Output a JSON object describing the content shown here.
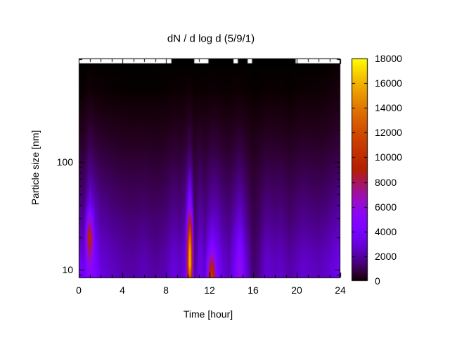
{
  "chart_data": {
    "type": "heatmap",
    "title": "dN / d log d (5/9/1)",
    "xlabel": "Time [hour]",
    "ylabel": "Particle size [nm]",
    "x_range_hour": [
      0,
      24
    ],
    "y_range_nm": [
      8.3,
      920
    ],
    "y_scale": "log",
    "x_ticks_major": [
      0,
      4,
      8,
      12,
      16,
      20,
      24
    ],
    "x_tick_labels": [
      "0",
      "4",
      "8",
      "12",
      "16",
      "20",
      "24"
    ],
    "x_minor_step_hour": 1,
    "y_ticks_labeled": [
      10,
      100
    ],
    "y_tick_labels": [
      "10",
      "100"
    ],
    "y_ticks_minor": [
      9,
      20,
      30,
      40,
      50,
      60,
      70,
      80,
      90,
      200,
      300,
      400,
      500,
      600,
      700,
      800,
      900
    ],
    "colorbar": {
      "min": 0,
      "max": 18000,
      "tick_step": 2000,
      "tick_labels": [
        "0",
        "2000",
        "4000",
        "6000",
        "8000",
        "10000",
        "12000",
        "14000",
        "16000",
        "18000"
      ],
      "palette_name": "gnuplot default pm3d (rgbformulae 7,5,15)",
      "palette_stops": [
        {
          "value": 0,
          "hex": "#000000"
        },
        {
          "value": 2000,
          "hex": "#5500a4"
        },
        {
          "value": 4000,
          "hex": "#7803fb"
        },
        {
          "value": 6000,
          "hex": "#930ddd"
        },
        {
          "value": 9000,
          "hex": "#b42000"
        },
        {
          "value": 12000,
          "hex": "#d04b00"
        },
        {
          "value": 14000,
          "hex": "#dd6c00"
        },
        {
          "value": 16000,
          "hex": "#efab00"
        },
        {
          "value": 18000,
          "hex": "#ffff00"
        }
      ]
    },
    "top_black_segments_hour": [
      [
        8.5,
        10.6
      ],
      [
        11.9,
        14.2
      ],
      [
        14.6,
        15.5
      ],
      [
        15.9,
        19.9
      ]
    ],
    "size_bins_nm": [
      8,
      11,
      15,
      20,
      28,
      40,
      60,
      90,
      140,
      250,
      450,
      800
    ],
    "time_bins_hour": [
      0,
      0.5,
      1.0,
      1.5,
      2.0,
      2.5,
      3.0,
      4.0,
      5.0,
      6.0,
      7.0,
      8.0,
      8.7,
      9.3,
      9.8,
      10.2,
      10.6,
      11.1,
      11.6,
      12.2,
      12.7,
      13.2,
      13.8,
      14.3,
      14.8,
      15.3,
      16.0,
      16.5,
      17.2,
      18.0,
      18.6,
      19.3,
      20.0,
      20.6,
      21.3,
      22.0,
      22.8,
      23.5,
      24.0
    ],
    "values_order": "values[time_index][size_index], size_bins ascending",
    "values": [
      [
        4200,
        3600,
        2900,
        2400,
        2000,
        1600,
        1200,
        900,
        550,
        250,
        30,
        0
      ],
      [
        3800,
        3400,
        2800,
        2300,
        1900,
        1500,
        1100,
        850,
        500,
        220,
        20,
        0
      ],
      [
        5000,
        6000,
        8500,
        10500,
        7000,
        3600,
        2300,
        1600,
        1000,
        450,
        120,
        0
      ],
      [
        4600,
        4300,
        3900,
        3400,
        2800,
        2300,
        1700,
        1200,
        750,
        320,
        60,
        0
      ],
      [
        3200,
        3000,
        2700,
        2400,
        2000,
        1700,
        1300,
        950,
        600,
        260,
        40,
        0
      ],
      [
        2900,
        2700,
        2500,
        2200,
        1900,
        1600,
        1200,
        900,
        550,
        240,
        30,
        0
      ],
      [
        2600,
        2500,
        2300,
        2000,
        1700,
        1400,
        1100,
        800,
        500,
        220,
        20,
        0
      ],
      [
        2200,
        2100,
        1900,
        1700,
        1500,
        1200,
        950,
        700,
        430,
        180,
        10,
        0
      ],
      [
        2100,
        2000,
        1800,
        1600,
        1400,
        1100,
        900,
        650,
        400,
        160,
        10,
        0
      ],
      [
        2400,
        2300,
        2100,
        1800,
        1500,
        1200,
        950,
        700,
        420,
        170,
        10,
        0
      ],
      [
        2000,
        1900,
        1700,
        1500,
        1300,
        1050,
        850,
        600,
        380,
        150,
        10,
        0
      ],
      [
        2300,
        2200,
        2000,
        1750,
        1500,
        1200,
        950,
        700,
        430,
        180,
        20,
        0
      ],
      [
        3200,
        3000,
        2700,
        2300,
        1950,
        1600,
        1250,
        900,
        560,
        240,
        40,
        0
      ],
      [
        2600,
        2500,
        2300,
        2000,
        1700,
        1400,
        1100,
        800,
        500,
        210,
        30,
        0
      ],
      [
        3400,
        3300,
        3000,
        2600,
        2200,
        1800,
        1400,
        1000,
        620,
        260,
        40,
        0
      ],
      [
        13000,
        17500,
        17000,
        14500,
        10000,
        5500,
        3400,
        1900,
        1000,
        420,
        80,
        0
      ],
      [
        2000,
        1700,
        1500,
        1300,
        1150,
        1000,
        850,
        650,
        420,
        180,
        20,
        0
      ],
      [
        3600,
        3400,
        3100,
        2700,
        2250,
        1850,
        1450,
        1050,
        640,
        270,
        40,
        0
      ],
      [
        2600,
        2500,
        2300,
        2000,
        1700,
        1400,
        1100,
        800,
        490,
        210,
        30,
        0
      ],
      [
        12000,
        9500,
        5500,
        3800,
        2800,
        2100,
        1600,
        1150,
        700,
        300,
        50,
        0
      ],
      [
        4600,
        4200,
        3700,
        3100,
        2550,
        2050,
        1550,
        1100,
        670,
        290,
        50,
        0
      ],
      [
        3000,
        2850,
        2600,
        2250,
        1900,
        1550,
        1200,
        870,
        530,
        230,
        30,
        0
      ],
      [
        2400,
        2300,
        2100,
        1850,
        1550,
        1300,
        1000,
        730,
        450,
        190,
        20,
        0
      ],
      [
        3800,
        3600,
        3250,
        2800,
        2300,
        1850,
        1400,
        1000,
        600,
        250,
        40,
        0
      ],
      [
        6200,
        5800,
        5000,
        4000,
        3100,
        2400,
        1750,
        1250,
        750,
        310,
        50,
        0
      ],
      [
        3200,
        3000,
        2700,
        2300,
        1900,
        1550,
        1200,
        850,
        520,
        220,
        30,
        0
      ],
      [
        1300,
        1200,
        1100,
        950,
        850,
        750,
        620,
        480,
        310,
        130,
        10,
        0
      ],
      [
        1700,
        1600,
        1450,
        1300,
        1100,
        950,
        780,
        580,
        370,
        150,
        10,
        0
      ],
      [
        2900,
        2750,
        2500,
        2150,
        1800,
        1500,
        1150,
        840,
        520,
        220,
        30,
        0
      ],
      [
        2500,
        2400,
        2200,
        1900,
        1600,
        1300,
        1050,
        760,
        470,
        200,
        30,
        0
      ],
      [
        2700,
        2550,
        2300,
        2000,
        1700,
        1400,
        1100,
        800,
        490,
        210,
        30,
        0
      ],
      [
        2100,
        2000,
        1800,
        1550,
        1300,
        1100,
        850,
        620,
        380,
        140,
        10,
        0
      ],
      [
        2500,
        2400,
        2150,
        1850,
        1550,
        1300,
        1000,
        740,
        460,
        200,
        30,
        0
      ],
      [
        2800,
        2650,
        2400,
        2100,
        1750,
        1450,
        1150,
        830,
        510,
        230,
        40,
        0
      ],
      [
        2600,
        2500,
        2250,
        1950,
        1650,
        1350,
        1050,
        780,
        480,
        220,
        40,
        0
      ],
      [
        2400,
        2300,
        2100,
        1800,
        1550,
        1250,
        1000,
        730,
        460,
        220,
        50,
        0
      ],
      [
        2700,
        2600,
        2350,
        2050,
        1750,
        1400,
        1100,
        820,
        520,
        260,
        80,
        0
      ],
      [
        3300,
        3100,
        2800,
        2450,
        2050,
        1700,
        1300,
        960,
        620,
        330,
        130,
        20
      ],
      [
        3900,
        3600,
        3250,
        2800,
        2350,
        1950,
        1500,
        1100,
        720,
        400,
        180,
        40
      ]
    ]
  }
}
